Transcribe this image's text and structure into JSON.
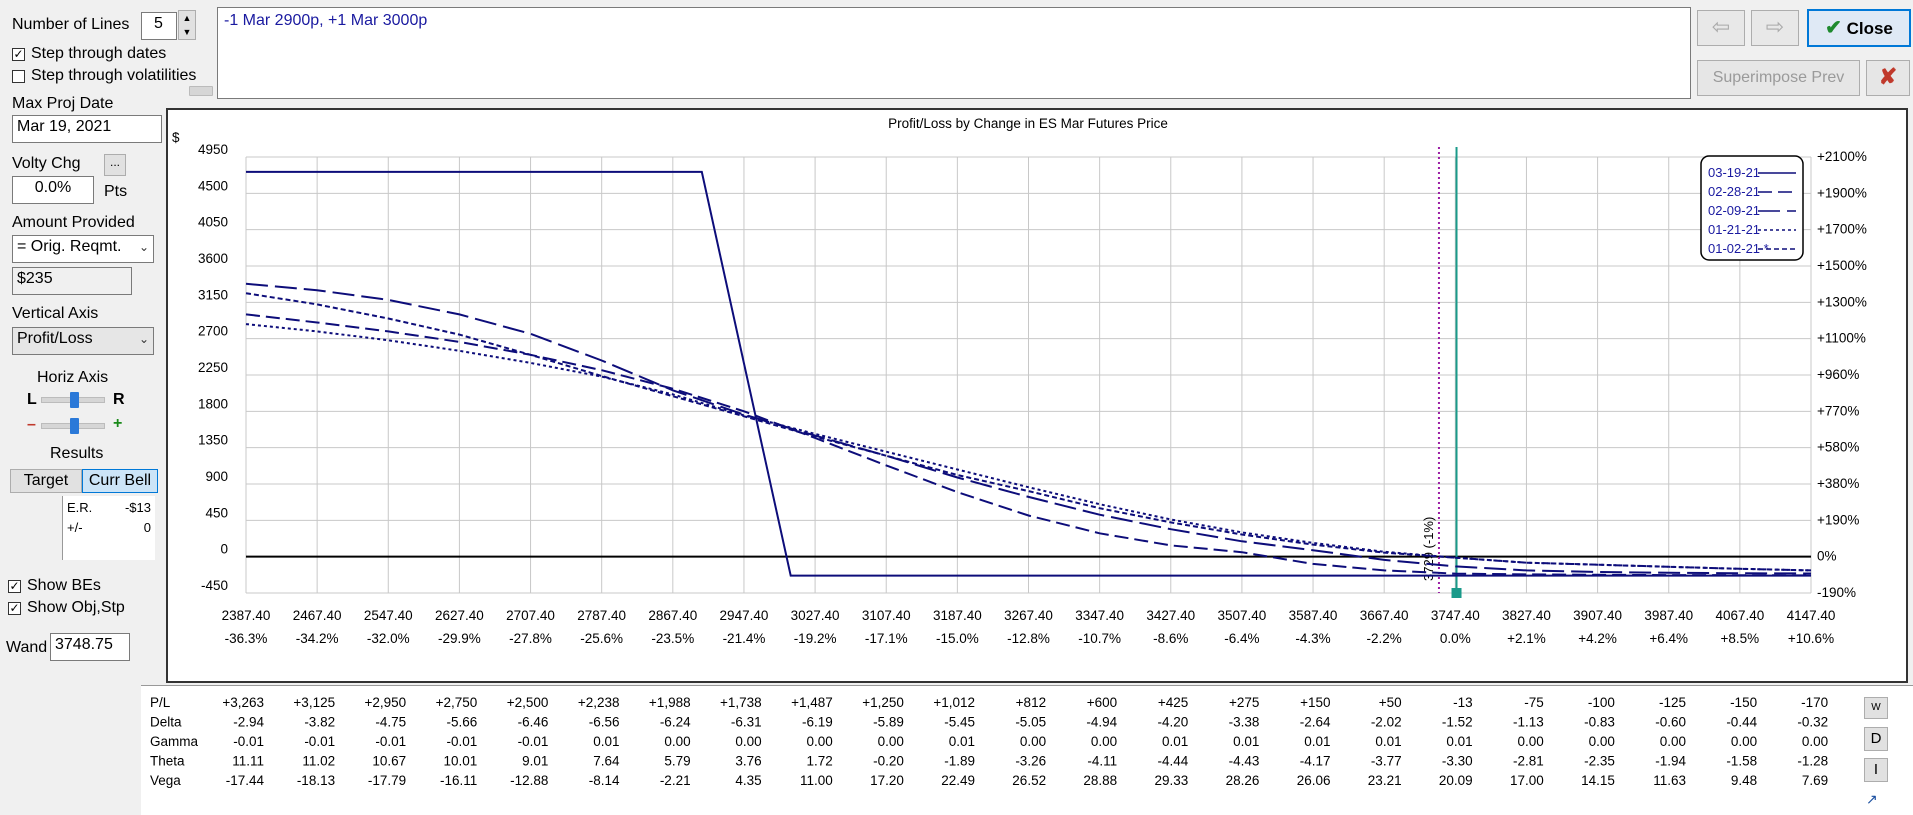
{
  "controls": {
    "num_lines_label": "Number of Lines",
    "num_lines_value": "5",
    "step_dates_label": "Step through dates",
    "step_dates_checked": true,
    "step_vols_label": "Step through volatilities",
    "step_vols_checked": false,
    "max_proj_date_label": "Max Proj Date",
    "max_proj_date_value": "Mar 19, 2021",
    "volty_chg_label": "Volty Chg",
    "volty_chg_button": "...",
    "volty_chg_value": "0.0%",
    "volty_chg_unit": "Pts",
    "amount_provided_label": "Amount Provided",
    "amount_provided_value": "= Orig. Reqmt.",
    "amount_value": "$235",
    "vertical_axis_label": "Vertical Axis",
    "vertical_axis_value": "Profit/Loss",
    "horiz_axis_label": "Horiz Axis",
    "horiz_left": "L",
    "horiz_right": "R",
    "zoom_minus": "–",
    "zoom_plus": "+",
    "results_label": "Results",
    "target_button": "Target",
    "curr_bell_button": "Curr Bell",
    "er_label": "E.R.",
    "er_value": "-$13",
    "pm_label": "+/-",
    "pm_value": "0",
    "show_bes_label": "Show BEs",
    "show_bes_checked": true,
    "show_obj_label": "Show Obj,Stp",
    "show_obj_checked": true,
    "wand_label": "Wand",
    "wand_value": "3748.75"
  },
  "position_text": "-1 Mar 2900p, +1 Mar 3000p",
  "top_buttons": {
    "back_icon": "back-arrow-icon",
    "forward_icon": "forward-arrow-icon",
    "close_label": "Close",
    "superimpose_label": "Superimpose Prev",
    "delete_icon": "close-x-icon"
  },
  "colors": {
    "series": "#0d0d7a",
    "be_line": "#9b1fa5",
    "current_line": "#1a9a8a",
    "text_blue": "#1a1aa0"
  },
  "chart_data": {
    "type": "line",
    "title": "Profit/Loss by Change in ES Mar Futures Price",
    "y_unit": "$",
    "ylim": [
      -450,
      4950
    ],
    "xlim": [
      2387.4,
      4147.4
    ],
    "y_ticks": [
      "4950",
      "4500",
      "4050",
      "3600",
      "3150",
      "2700",
      "2250",
      "1800",
      "1350",
      "900",
      "450",
      "0",
      "-450"
    ],
    "y_right_ticks": [
      "+2100%",
      "+1900%",
      "+1700%",
      "+1500%",
      "+1300%",
      "+1100%",
      "+960%",
      "+770%",
      "+580%",
      "+380%",
      "+190%",
      "0%",
      "-190%"
    ],
    "x_ticks": [
      "2387.40",
      "2467.40",
      "2547.40",
      "2627.40",
      "2707.40",
      "2787.40",
      "2867.40",
      "2947.40",
      "3027.40",
      "3107.40",
      "3187.40",
      "3267.40",
      "3347.40",
      "3427.40",
      "3507.40",
      "3587.40",
      "3667.40",
      "3747.40",
      "3827.40",
      "3907.40",
      "3987.40",
      "4067.40",
      "4147.40"
    ],
    "x_pct_ticks": [
      "-36.3%",
      "-34.2%",
      "-32.0%",
      "-29.9%",
      "-27.8%",
      "-25.6%",
      "-23.5%",
      "-21.4%",
      "-19.2%",
      "-17.1%",
      "-15.0%",
      "-12.8%",
      "-10.7%",
      "-8.6%",
      "-6.4%",
      "-4.3%",
      "-2.2%",
      "0.0%",
      "+2.1%",
      "+4.2%",
      "+6.4%",
      "+8.5%",
      "+10.6%"
    ],
    "breakeven_label": "3729 (-1%)",
    "breakeven_x": 3729,
    "current_x": 3748.75,
    "legend": [
      "03-19-21",
      "02-28-21",
      "02-09-21",
      "01-21-21",
      "01-02-21 *"
    ],
    "legend_position": "top-right",
    "grid": true,
    "series": [
      {
        "name": "03-19-21",
        "dash": "",
        "x": [
          2387.4,
          2900,
          3000,
          4147.4
        ],
        "y": [
          4765,
          4765,
          -235,
          -235
        ]
      },
      {
        "name": "02-28-21",
        "dash": "14 6",
        "x": [
          2387.4,
          2467.4,
          2547.4,
          2627.4,
          2707.4,
          2787.4,
          2867.4,
          2947.4,
          3027.4,
          3107.4,
          3187.4,
          3267.4,
          3347.4,
          3427.4,
          3507.4,
          3587.4,
          3667.4,
          3747.4,
          3827.4,
          3907.4,
          3987.4,
          4067.4,
          4147.4
        ],
        "y": [
          3000,
          2900,
          2790,
          2660,
          2500,
          2310,
          2080,
          1800,
          1470,
          1130,
          800,
          510,
          290,
          140,
          55,
          -90,
          -170,
          -210,
          -220,
          -225,
          -228,
          -230,
          -232
        ]
      },
      {
        "name": "02-09-21",
        "dash": "22 7",
        "x": [
          2387.4,
          2467.4,
          2547.4,
          2627.4,
          2707.4,
          2787.4,
          2867.4,
          2947.4,
          3027.4,
          3107.4,
          3187.4,
          3267.4,
          3347.4,
          3427.4,
          3507.4,
          3587.4,
          3667.4,
          3747.4,
          3827.4,
          3907.4,
          3987.4,
          4067.4,
          4147.4
        ],
        "y": [
          3380,
          3300,
          3180,
          3000,
          2760,
          2430,
          2060,
          1760,
          1500,
          1250,
          980,
          740,
          520,
          340,
          190,
          80,
          -40,
          -120,
          -170,
          -190,
          -200,
          -205,
          -208
        ]
      },
      {
        "name": "01-21-21",
        "dash": "3 3",
        "x": [
          2387.4,
          2467.4,
          2547.4,
          2627.4,
          2707.4,
          2787.4,
          2867.4,
          2947.4,
          3027.4,
          3107.4,
          3187.4,
          3267.4,
          3347.4,
          3427.4,
          3507.4,
          3587.4,
          3667.4,
          3747.4,
          3827.4,
          3907.4,
          3987.4,
          4067.4,
          4147.4
        ],
        "y": [
          2880,
          2790,
          2680,
          2550,
          2400,
          2230,
          2010,
          1750,
          1520,
          1300,
          1080,
          860,
          650,
          460,
          300,
          170,
          60,
          -13,
          -75,
          -100,
          -125,
          -150,
          -170
        ]
      },
      {
        "name": "01-02-21 *",
        "dash": "5 3",
        "x": [
          2387.4,
          2467.4,
          2547.4,
          2627.4,
          2707.4,
          2787.4,
          2867.4,
          2947.4,
          3027.4,
          3107.4,
          3187.4,
          3267.4,
          3347.4,
          3427.4,
          3507.4,
          3587.4,
          3667.4,
          3747.4,
          3827.4,
          3907.4,
          3987.4,
          4067.4,
          4147.4
        ],
        "y": [
          3263,
          3125,
          2950,
          2750,
          2500,
          2238,
          1988,
          1738,
          1487,
          1250,
          1012,
          812,
          600,
          425,
          275,
          150,
          50,
          -13,
          -75,
          -100,
          -125,
          -150,
          -170
        ]
      }
    ]
  },
  "greeks": {
    "rows": [
      {
        "label": "P/L",
        "values": [
          "+3,263",
          "+3,125",
          "+2,950",
          "+2,750",
          "+2,500",
          "+2,238",
          "+1,988",
          "+1,738",
          "+1,487",
          "+1,250",
          "+1,012",
          "+812",
          "+600",
          "+425",
          "+275",
          "+150",
          "+50",
          "-13",
          "-75",
          "-100",
          "-125",
          "-150",
          "-170"
        ]
      },
      {
        "label": "Delta",
        "values": [
          "-2.94",
          "-3.82",
          "-4.75",
          "-5.66",
          "-6.46",
          "-6.56",
          "-6.24",
          "-6.31",
          "-6.19",
          "-5.89",
          "-5.45",
          "-5.05",
          "-4.94",
          "-4.20",
          "-3.38",
          "-2.64",
          "-2.02",
          "-1.52",
          "-1.13",
          "-0.83",
          "-0.60",
          "-0.44",
          "-0.32"
        ]
      },
      {
        "label": "Gamma",
        "values": [
          "-0.01",
          "-0.01",
          "-0.01",
          "-0.01",
          "-0.01",
          "0.01",
          "0.00",
          "0.00",
          "0.00",
          "0.00",
          "0.01",
          "0.00",
          "0.00",
          "0.01",
          "0.01",
          "0.01",
          "0.01",
          "0.01",
          "0.00",
          "0.00",
          "0.00",
          "0.00",
          "0.00"
        ]
      },
      {
        "label": "Theta",
        "values": [
          "11.11",
          "11.02",
          "10.67",
          "10.01",
          "9.01",
          "7.64",
          "5.79",
          "3.76",
          "1.72",
          "-0.20",
          "-1.89",
          "-3.26",
          "-4.11",
          "-4.44",
          "-4.43",
          "-4.17",
          "-3.77",
          "-3.30",
          "-2.81",
          "-2.35",
          "-1.94",
          "-1.58",
          "-1.28"
        ]
      },
      {
        "label": "Vega",
        "values": [
          "-17.44",
          "-18.13",
          "-17.79",
          "-16.11",
          "-12.88",
          "-8.14",
          "-2.21",
          "4.35",
          "11.00",
          "17.20",
          "22.49",
          "26.52",
          "28.88",
          "29.33",
          "28.26",
          "26.06",
          "23.21",
          "20.09",
          "17.00",
          "14.15",
          "11.63",
          "9.48",
          "7.69"
        ]
      }
    ],
    "side_buttons": [
      "W",
      "D",
      "I"
    ],
    "export_icon": "export-icon"
  }
}
